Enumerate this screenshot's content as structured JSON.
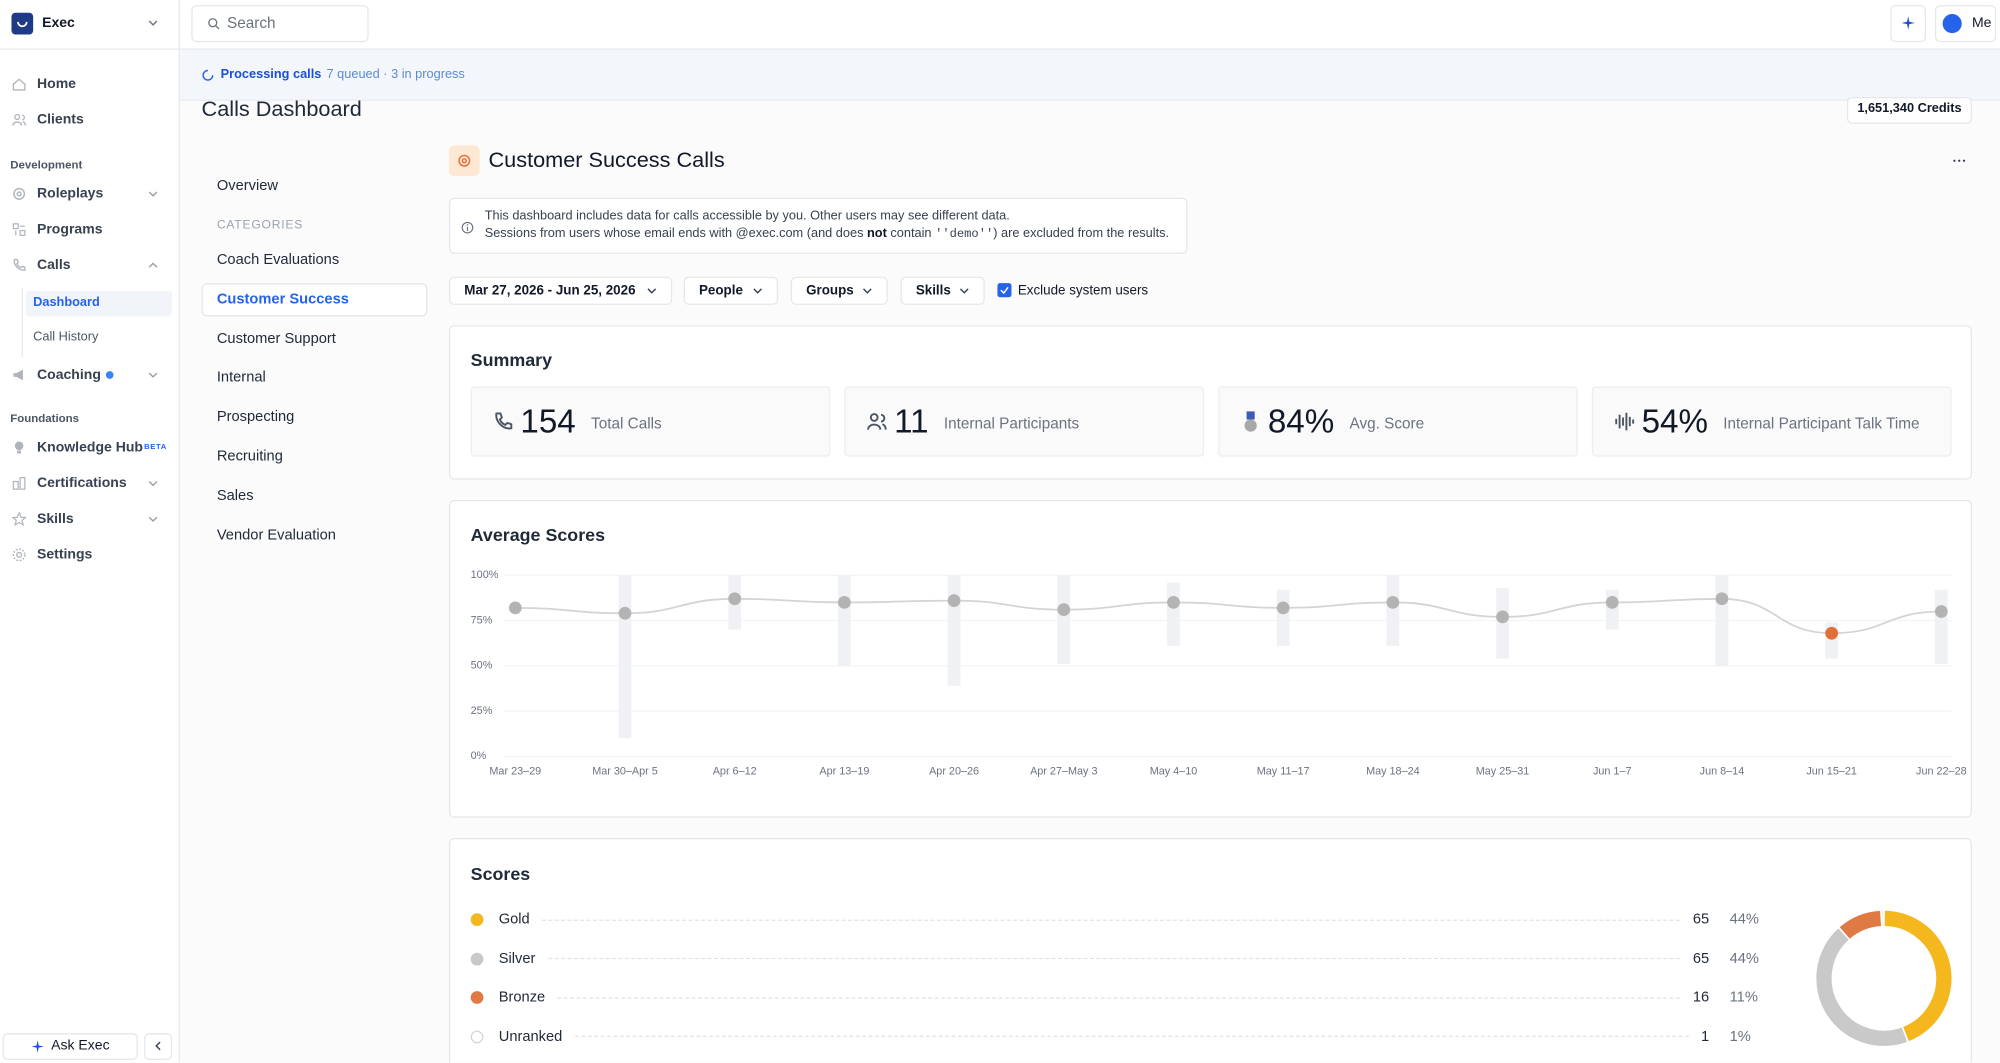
{
  "sidebar": {
    "workspace": "Exec",
    "nav": [
      {
        "label": "Home"
      },
      {
        "label": "Clients"
      }
    ],
    "sections": [
      {
        "title": "Development",
        "items": [
          {
            "label": "Roleplays",
            "expanded": false
          },
          {
            "label": "Programs"
          },
          {
            "label": "Calls",
            "expanded": true,
            "children": [
              {
                "label": "Dashboard",
                "active": true
              },
              {
                "label": "Call History"
              }
            ]
          },
          {
            "label": "Coaching",
            "expanded": false,
            "indicator": true
          }
        ]
      },
      {
        "title": "Foundations",
        "items": [
          {
            "label": "Knowledge Hub",
            "badge": "BETA"
          },
          {
            "label": "Certifications",
            "expanded": false
          },
          {
            "label": "Skills",
            "expanded": false
          },
          {
            "label": "Settings"
          }
        ]
      }
    ],
    "ask": "Ask Exec"
  },
  "topbar": {
    "search_placeholder": "Search",
    "user": "Me"
  },
  "banner": {
    "status": "Processing calls",
    "detail": "7 queued · 3 in progress"
  },
  "page": {
    "title": "Calls Dashboard",
    "credits": "1,651,340 Credits"
  },
  "category_nav": {
    "overview": "Overview",
    "heading": "CATEGORIES",
    "items": [
      {
        "label": "Coach Evaluations"
      },
      {
        "label": "Customer Success",
        "active": true
      },
      {
        "label": "Customer Support"
      },
      {
        "label": "Internal"
      },
      {
        "label": "Prospecting"
      },
      {
        "label": "Recruiting"
      },
      {
        "label": "Sales"
      },
      {
        "label": "Vendor Evaluation"
      }
    ]
  },
  "dashboard": {
    "title": "Customer Success Calls",
    "notice": {
      "line1": "This dashboard includes data for calls accessible by you. Other users may see different data.",
      "line2": [
        {
          "text": "Sessions from users whose email ends with @exec.com (and does "
        },
        {
          "text": "not",
          "format": "bold"
        },
        {
          "text": " contain "
        },
        {
          "text": "''demo''",
          "format": "code"
        },
        {
          "text": ") are excluded from the results."
        }
      ]
    },
    "filters": {
      "date_range": "Mar 27, 2026 - Jun 25, 2026",
      "people": "People",
      "groups": "Groups",
      "skills": "Skills",
      "exclude_system_users": {
        "label": "Exclude system users",
        "checked": true
      }
    },
    "summary": {
      "title": "Summary",
      "stats": [
        {
          "value": "154",
          "label": "Total Calls"
        },
        {
          "value": "11",
          "label": "Internal Participants"
        },
        {
          "value": "84%",
          "label": "Avg. Score"
        },
        {
          "value": "54%",
          "label": "Internal Participant Talk Time"
        }
      ]
    }
  },
  "chart_data": [
    {
      "type": "line",
      "title": "Average Scores",
      "categories": [
        "Mar 23–29",
        "Mar 30–Apr 5",
        "Apr 6–12",
        "Apr 13–19",
        "Apr 20–26",
        "Apr 27–May 3",
        "May 4–10",
        "May 11–17",
        "May 18–24",
        "May 25–31",
        "Jun 1–7",
        "Jun 8–14",
        "Jun 15–21",
        "Jun 22–28"
      ],
      "values": [
        82,
        79,
        87,
        85,
        86,
        81,
        85,
        82,
        85,
        77,
        85,
        87,
        68,
        80
      ],
      "low": [
        null,
        10,
        70,
        50,
        39,
        51,
        61,
        61,
        61,
        54,
        70,
        50,
        54,
        51
      ],
      "high": [
        null,
        100,
        100,
        100,
        100,
        100,
        96,
        92,
        100,
        93,
        92,
        100,
        74,
        92
      ],
      "color": "#b3b3b3",
      "point_colors": [
        "#b3b3b3",
        "#b3b3b3",
        "#b3b3b3",
        "#b3b3b3",
        "#b3b3b3",
        "#b3b3b3",
        "#b3b3b3",
        "#b3b3b3",
        "#b3b3b3",
        "#b3b3b3",
        "#b3b3b3",
        "#b3b3b3",
        "#e0703a",
        "#b3b3b3"
      ],
      "range_color": "#eff1f5",
      "ylim": [
        0,
        100
      ],
      "yticks": [
        {
          "value": 0,
          "label": "0%"
        },
        {
          "value": 25,
          "label": "25%"
        },
        {
          "value": 50,
          "label": "50%"
        },
        {
          "value": 75,
          "label": "75%"
        },
        {
          "value": 100,
          "label": "100%"
        }
      ],
      "grid": true
    },
    {
      "type": "pie",
      "title": "Scores",
      "categories": [
        "Gold",
        "Silver",
        "Bronze",
        "Unranked"
      ],
      "values": [
        65,
        65,
        16,
        1
      ],
      "percent_labels": [
        "44%",
        "44%",
        "11%",
        "1%"
      ],
      "colors": [
        "#f4b71d",
        "#c9c9c9",
        "#e07a45",
        "#ececec"
      ],
      "donut": true
    }
  ]
}
